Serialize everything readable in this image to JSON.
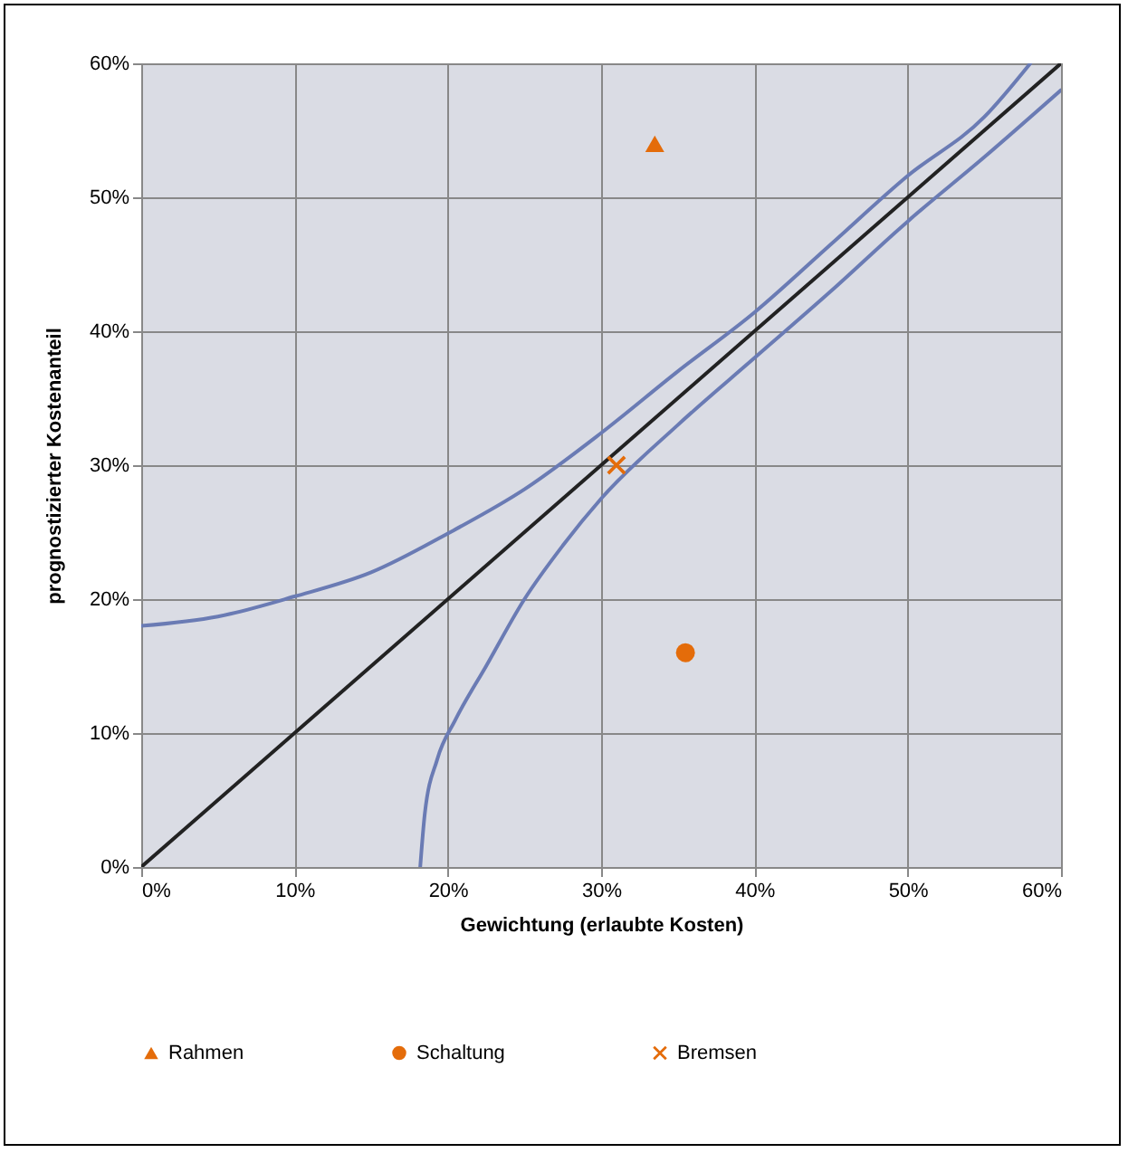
{
  "chart_data": {
    "type": "line",
    "xlabel": "Gewichtung (erlaubte Kosten)",
    "ylabel": "prognostizierter Kostenanteil",
    "xlim": [
      0,
      60
    ],
    "ylim": [
      0,
      60
    ],
    "xticks": [
      {
        "value": 0,
        "label": "0%"
      },
      {
        "value": 10,
        "label": "10%"
      },
      {
        "value": 20,
        "label": "20%"
      },
      {
        "value": 30,
        "label": "30%"
      },
      {
        "value": 40,
        "label": "40%"
      },
      {
        "value": 50,
        "label": "50%"
      },
      {
        "value": 60,
        "label": "60%"
      }
    ],
    "yticks": [
      {
        "value": 0,
        "label": "0%"
      },
      {
        "value": 10,
        "label": "10%"
      },
      {
        "value": 20,
        "label": "20%"
      },
      {
        "value": 30,
        "label": "30%"
      },
      {
        "value": 40,
        "label": "40%"
      },
      {
        "value": 50,
        "label": "50%"
      },
      {
        "value": 60,
        "label": "60%"
      }
    ],
    "grid": true,
    "legend": "bottom",
    "series": [
      {
        "color": "#6a7bb4",
        "x": [
          0,
          5,
          10,
          15,
          20,
          25,
          30,
          35,
          40,
          45,
          50,
          55,
          58
        ],
        "values": [
          18,
          18.7,
          20.2,
          22,
          24.9,
          28.2,
          32.4,
          37,
          41.4,
          46.5,
          51.6,
          56,
          60
        ]
      },
      {
        "color": "#6a7bb4",
        "x": [
          18.2,
          18.5,
          19.3,
          20.5,
          22.5,
          25,
          27.5,
          30,
          35,
          40,
          45,
          50,
          55,
          60
        ],
        "values": [
          0,
          4,
          8,
          11,
          15,
          20,
          24,
          27.5,
          33,
          38,
          43,
          48.2,
          53,
          58
        ]
      },
      {
        "color": "#222222",
        "x": [
          0,
          60
        ],
        "values": [
          0,
          60
        ]
      },
      {
        "type": "scatter",
        "name": "Rahmen",
        "color": "#e46c0a",
        "marker": "triangle",
        "x": [
          33.5
        ],
        "values": [
          54
        ]
      },
      {
        "type": "scatter",
        "name": "Schaltung",
        "color": "#e46c0a",
        "marker": "circle",
        "x": [
          35.5
        ],
        "values": [
          16
        ]
      },
      {
        "type": "scatter",
        "name": "Bremsen",
        "color": "#e46c0a",
        "marker": "cross",
        "x": [
          31
        ],
        "values": [
          30
        ]
      }
    ]
  }
}
